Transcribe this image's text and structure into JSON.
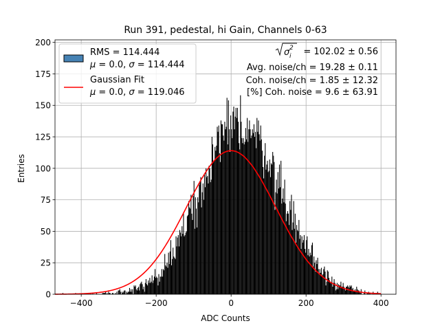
{
  "chart_data": {
    "type": "histogram",
    "title": "Run 391, pedestal, hi Gain, Channels 0-63",
    "xlabel": "ADC Counts",
    "ylabel": "Entries",
    "xlim": [
      -470,
      440
    ],
    "ylim": [
      0,
      202
    ],
    "xticks": [
      -400,
      -200,
      0,
      200,
      400
    ],
    "yticks": [
      0,
      25,
      50,
      75,
      100,
      125,
      150,
      175,
      200
    ],
    "xtick_labels": [
      "−400",
      "−200",
      "0",
      "200",
      "400"
    ],
    "ytick_labels": [
      "0",
      "25",
      "50",
      "75",
      "100",
      "125",
      "150",
      "175",
      "200"
    ],
    "grid": true,
    "histogram": {
      "name": "RMS = 114.444",
      "mean": 0.0,
      "sigma": 114.444,
      "color": "#000000",
      "legend_color": "#4682b4",
      "range": [
        -460,
        400
      ],
      "bin_width": 2,
      "peak_center": 25,
      "peak_entries": 135
    },
    "fit": {
      "name": "Gaussian Fit",
      "mean": 0.0,
      "sigma": 119.046,
      "amplitude": 114,
      "range": [
        -470,
        400
      ],
      "color": "#ff0000"
    },
    "legend": {
      "position": "upper-left",
      "entries": [
        {
          "line1": "RMS = 114.444",
          "line2_mu": "μ",
          "line2_val": " = 0.0, ",
          "line2_sig": "σ",
          "line2_sigval": " = 114.444",
          "marker": "patch"
        },
        {
          "line1": "Gaussian Fit",
          "line2_mu": "μ",
          "line2_val": " = 0.0, ",
          "line2_sig": "σ",
          "line2_sigval": " = 119.046",
          "marker": "line"
        }
      ]
    },
    "annotations": {
      "sigma_value": "= 102.02 ± 0.56",
      "avg_noise": "Avg. noise/ch = 19.28 ± 0.11",
      "coh_noise": "Coh. noise/ch = 1.85 ± 12.32",
      "pct_coh_noise": "[%] Coh. noise = 9.6 ± 63.91"
    }
  }
}
